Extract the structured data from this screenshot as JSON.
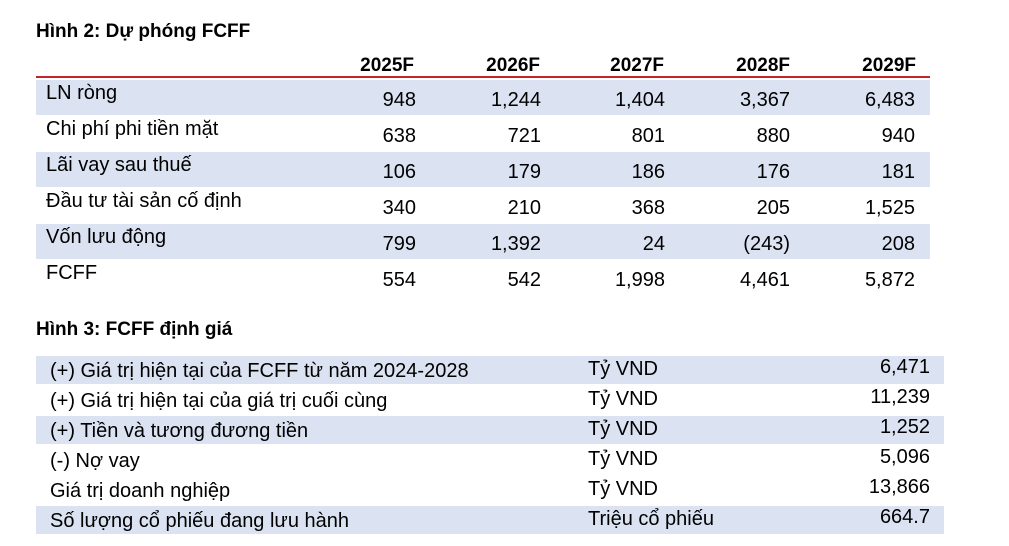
{
  "figure2": {
    "title": "Hình 2: Dự phóng FCFF",
    "years": [
      "2025F",
      "2026F",
      "2027F",
      "2028F",
      "2029F"
    ],
    "rows": [
      {
        "label": "LN ròng",
        "values": [
          "948",
          "1,244",
          "1,404",
          "3,367",
          "6,483"
        ]
      },
      {
        "label": "Chi phí phi tiền mặt",
        "values": [
          "638",
          "721",
          "801",
          "880",
          "940"
        ]
      },
      {
        "label": "Lãi vay sau thuế",
        "values": [
          "106",
          "179",
          "186",
          "176",
          "181"
        ]
      },
      {
        "label": "Đầu tư tài sản cố định",
        "values": [
          "340",
          "210",
          "368",
          "205",
          "1,525"
        ]
      },
      {
        "label": "Vốn lưu động",
        "values": [
          "799",
          "1,392",
          "24",
          "(243)",
          "208"
        ]
      },
      {
        "label": "FCFF",
        "values": [
          "554",
          "542",
          "1,998",
          "4,461",
          "5,872"
        ]
      }
    ]
  },
  "figure3": {
    "title": "Hình 3: FCFF định giá",
    "rows": [
      {
        "label": "(+) Giá trị hiện tại của FCFF từ năm 2024-2028",
        "unit": "Tỷ VND",
        "value": "6,471"
      },
      {
        "label": "(+) Giá trị hiện tại của giá trị cuối cùng",
        "unit": "Tỷ VND",
        "value": "11,239"
      },
      {
        "label": "(+) Tiền và tương đương tiền",
        "unit": "Tỷ VND",
        "value": "1,252"
      },
      {
        "label": "(-) Nợ vay",
        "unit": "Tỷ VND",
        "value": "5,096"
      },
      {
        "label": "Giá trị doanh nghiệp",
        "unit": "Tỷ VND",
        "value": "13,866"
      },
      {
        "label": "Số lượng cổ phiếu đang lưu hành",
        "unit": "Triệu cổ phiếu",
        "value": "664.7"
      }
    ]
  },
  "colors": {
    "header_rule": "#c0272d",
    "row_shade": "#dbe3f2"
  }
}
